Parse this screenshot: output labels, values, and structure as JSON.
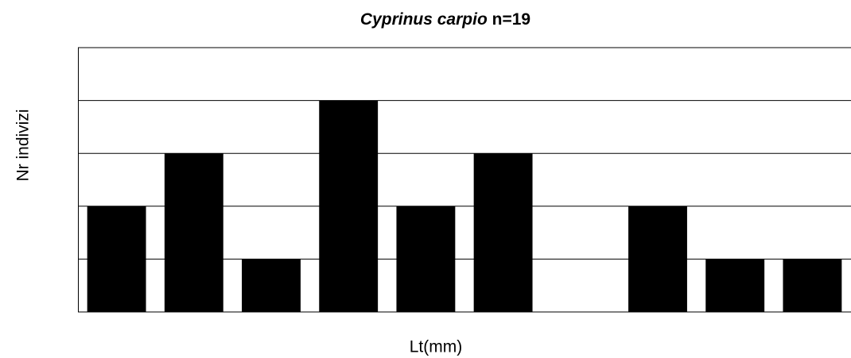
{
  "chart_data": {
    "type": "bar",
    "title": {
      "species": "Cyprinus carpio",
      "count": "n=19"
    },
    "x_label": "Lt(mm)",
    "y_label": "Nr indivizi",
    "categories": [
      null,
      null,
      null,
      null,
      null,
      null,
      null,
      null,
      null,
      null
    ],
    "values": [
      2,
      3,
      1,
      4,
      2,
      3,
      0,
      2,
      1,
      1
    ],
    "color": "#000000",
    "ylim": [
      0,
      5
    ],
    "yticks": [
      0,
      1,
      2,
      3,
      4,
      5
    ],
    "grid": true
  }
}
